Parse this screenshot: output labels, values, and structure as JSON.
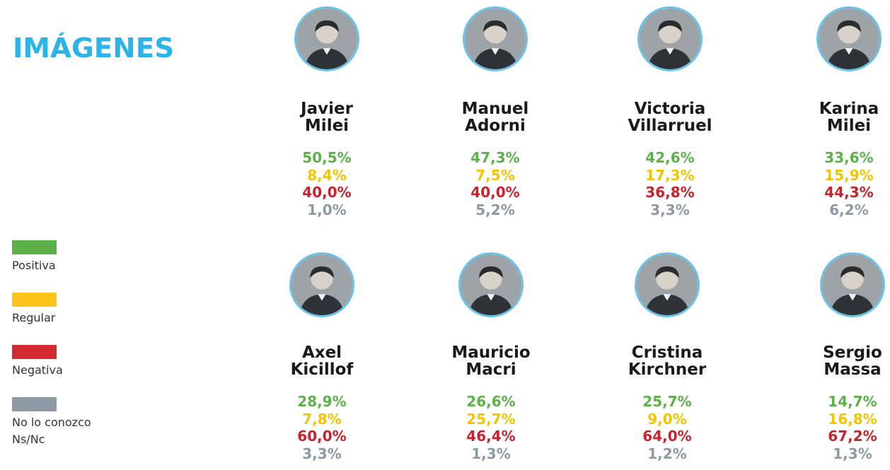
{
  "title": "IMÁGENES",
  "legend": [
    {
      "label": "Positiva",
      "color": "#5cb248"
    },
    {
      "label": "Regular",
      "color": "#fcc419"
    },
    {
      "label": "Negativa",
      "color": "#d42a33"
    },
    {
      "label": "No lo conozco\nNs/Nc",
      "color": "#8c9aa4"
    }
  ],
  "chart_data": {
    "type": "table",
    "title": "IMÁGENES",
    "columns": [
      "Positiva",
      "Regular",
      "Negativa",
      "No lo conozco Ns/Nc"
    ],
    "rows": [
      {
        "name": "Javier\nMilei",
        "values": [
          "50,5%",
          "8,4%",
          "40,0%",
          "1,0%"
        ]
      },
      {
        "name": "Manuel\nAdorni",
        "values": [
          "47,3%",
          "7,5%",
          "40,0%",
          "5,2%"
        ]
      },
      {
        "name": "Victoria\nVillarruel",
        "values": [
          "42,6%",
          "17,3%",
          "36,8%",
          "3,3%"
        ]
      },
      {
        "name": "Karina\nMilei",
        "values": [
          "33,6%",
          "15,9%",
          "44,3%",
          "6,2%"
        ]
      },
      {
        "name": "Axel\nKicillof",
        "values": [
          "28,9%",
          "7,8%",
          "60,0%",
          "3,3%"
        ]
      },
      {
        "name": "Mauricio\nMacri",
        "values": [
          "26,6%",
          "25,7%",
          "46,4%",
          "1,3%"
        ]
      },
      {
        "name": "Cristina\nKirchner",
        "values": [
          "25,7%",
          "9,0%",
          "64,0%",
          "1,2%"
        ]
      },
      {
        "name": "Sergio\nMassa",
        "values": [
          "14,7%",
          "16,8%",
          "67,2%",
          "1,3%"
        ]
      }
    ]
  },
  "photos": [
    "person-photo",
    "person-photo",
    "person-photo",
    "person-photo",
    "person-photo",
    "person-photo",
    "person-photo",
    "person-photo"
  ]
}
